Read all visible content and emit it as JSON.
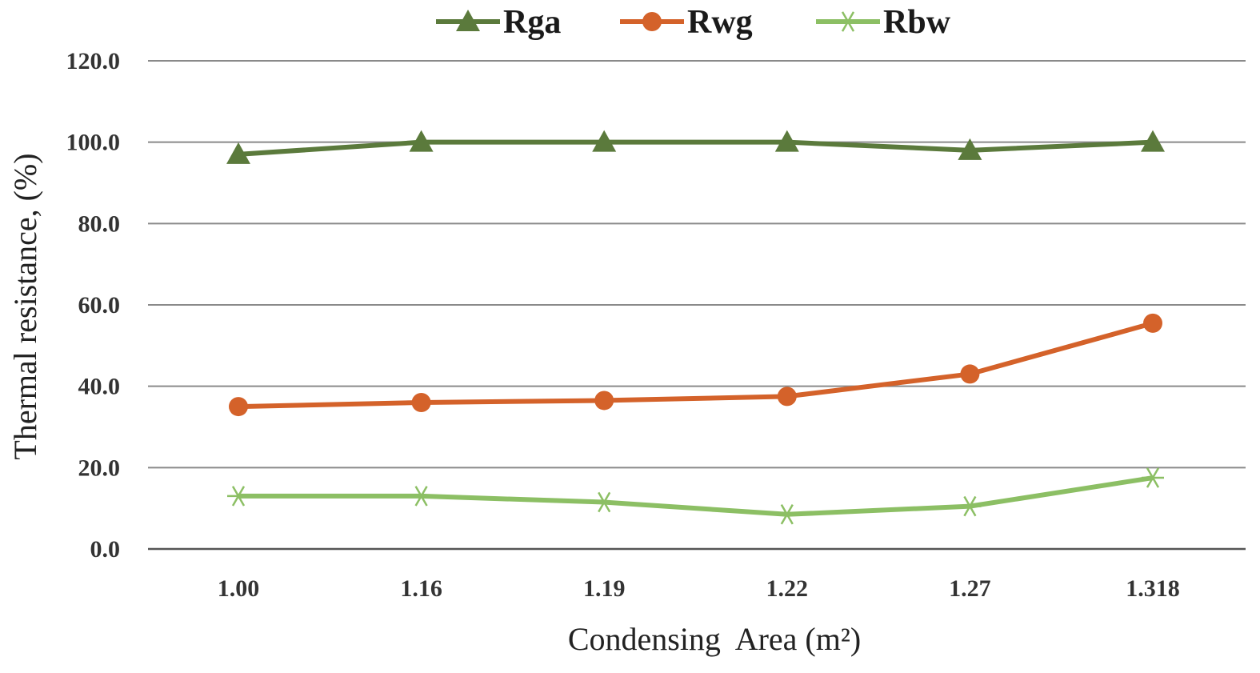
{
  "chart_data": {
    "type": "line",
    "title": "",
    "xlabel": "Condensing  Area (m²)",
    "ylabel": "Thermal resistance, (%)",
    "categories": [
      "1.00",
      "1.16",
      "1.19",
      "1.22",
      "1.27",
      "1.318"
    ],
    "ylim": [
      0,
      120
    ],
    "yticks": [
      "0.0",
      "20.0",
      "40.0",
      "60.0",
      "80.0",
      "100.0",
      "120.0"
    ],
    "grid": true,
    "legend_position": "top-center",
    "series": [
      {
        "name": "Rga",
        "values": [
          97,
          100,
          100,
          100,
          98,
          100
        ],
        "color": "#5b7a3c",
        "marker": "triangle"
      },
      {
        "name": "Rwg",
        "values": [
          35,
          36,
          36.5,
          37.5,
          43,
          55.5
        ],
        "color": "#d4622a",
        "marker": "circle"
      },
      {
        "name": "Rbw",
        "values": [
          13,
          13,
          11.5,
          8.5,
          10.5,
          17.5
        ],
        "color": "#8cbf64",
        "marker": "asterisk"
      }
    ]
  }
}
